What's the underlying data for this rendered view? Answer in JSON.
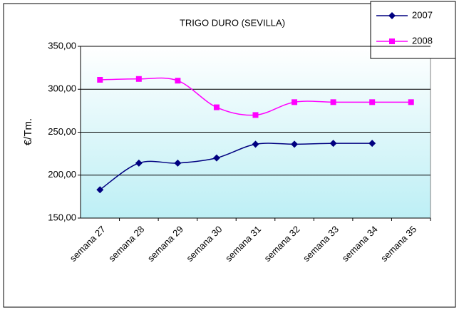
{
  "chart_data": {
    "type": "line",
    "title": "TRIGO DURO (SEVILLA)",
    "y_label": "€/Tm.",
    "categories": [
      "semana 27",
      "semana 28",
      "semana 29",
      "semana 30",
      "semana 31",
      "semana 32",
      "semana 33",
      "semana 34",
      "semana 35"
    ],
    "series": [
      {
        "name": "2007",
        "color": "#000080",
        "marker": "diamond",
        "values": [
          183,
          214,
          214,
          220,
          236,
          236,
          237,
          237,
          null
        ]
      },
      {
        "name": "2008",
        "color": "#ff00ff",
        "marker": "square",
        "values": [
          311,
          312,
          310,
          279,
          270,
          285,
          285,
          285,
          285
        ]
      }
    ],
    "ylim": [
      150,
      350
    ],
    "yticks": [
      {
        "value": 150,
        "label": "150,00"
      },
      {
        "value": 200,
        "label": "200,00"
      },
      {
        "value": 250,
        "label": "250,00"
      },
      {
        "value": 300,
        "label": "300,00"
      },
      {
        "value": 350,
        "label": "350,00"
      }
    ],
    "grid": true,
    "smooth": true,
    "legend": "top-right"
  }
}
